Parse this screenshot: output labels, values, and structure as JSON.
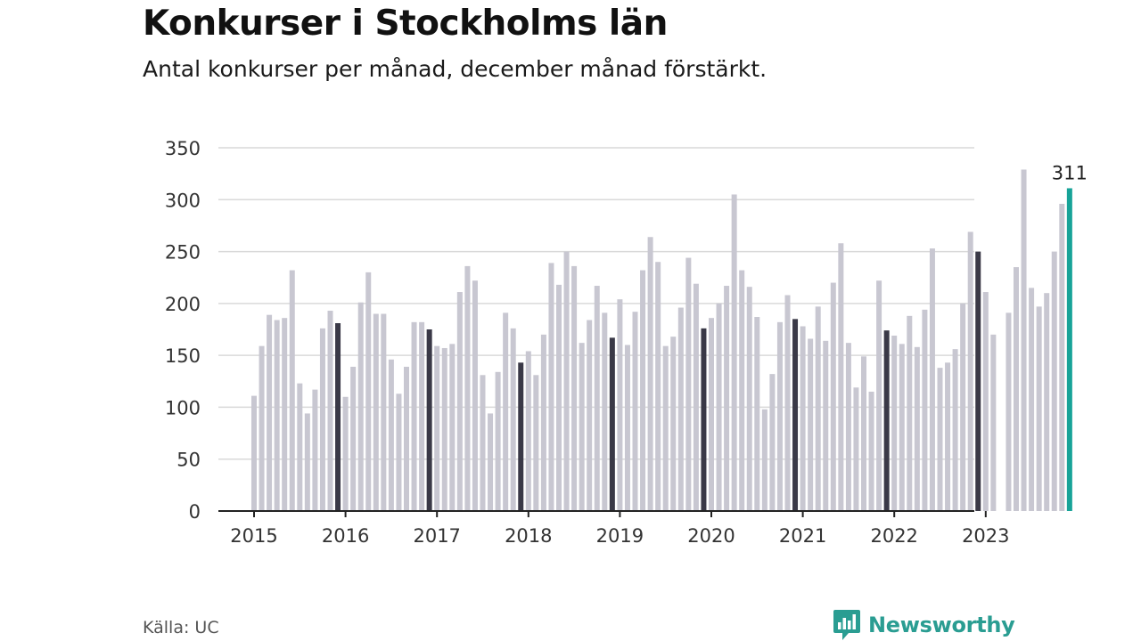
{
  "header": {
    "title": "Konkurser i Stockholms län",
    "subtitle": "Antal konkurser per månad, december månad förstärkt."
  },
  "footer": {
    "source": "Källa: UC",
    "brand": "Newsworthy"
  },
  "colors": {
    "regular_bar": "#c8c7d1",
    "december_bar": "#3a3947",
    "latest_bar": "#17a398",
    "grid": "#d9d9d9",
    "axis": "#222222",
    "brand": "#2a9d92"
  },
  "chart_data": {
    "type": "bar",
    "ylim": [
      0,
      350
    ],
    "yticks": [
      0,
      50,
      100,
      150,
      200,
      250,
      300,
      350
    ],
    "xticks": [
      "2015",
      "2016",
      "2017",
      "2018",
      "2019",
      "2020",
      "2021",
      "2022",
      "2023"
    ],
    "start_month": "2015-01",
    "highlight": "december months darker; latest month highlighted",
    "annotation": {
      "label": "311",
      "month": "2023-12"
    },
    "values": [
      111,
      159,
      189,
      184,
      186,
      232,
      123,
      94,
      117,
      176,
      193,
      181,
      110,
      139,
      201,
      230,
      190,
      190,
      146,
      113,
      139,
      182,
      182,
      175,
      159,
      157,
      161,
      211,
      236,
      222,
      131,
      94,
      134,
      191,
      176,
      143,
      154,
      131,
      170,
      239,
      218,
      250,
      236,
      162,
      184,
      217,
      191,
      167,
      204,
      160,
      192,
      232,
      264,
      240,
      159,
      168,
      196,
      244,
      219,
      176,
      186,
      200,
      217,
      305,
      232,
      216,
      187,
      98,
      132,
      182,
      208,
      185,
      178,
      166,
      197,
      164,
      220,
      258,
      162,
      119,
      149,
      115,
      222,
      174,
      169,
      161,
      188,
      158,
      194,
      253,
      138,
      143,
      156,
      200,
      269,
      250,
      211,
      170,
      0,
      191,
      235,
      329,
      215,
      197,
      210,
      250,
      296,
      311
    ]
  }
}
